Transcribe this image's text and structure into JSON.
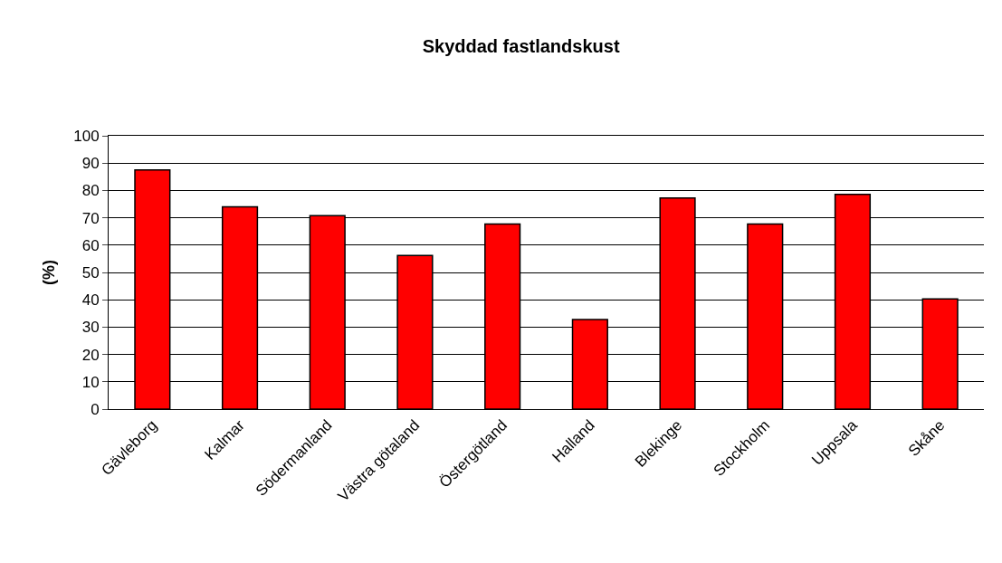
{
  "chart_data": {
    "type": "bar",
    "title": "Skyddad fastlandskust",
    "ylabel": "(%)",
    "categories": [
      "Gävleborg",
      "Kalmar",
      "Södermanland",
      "Västra götaland",
      "Östergötland",
      "Halland",
      "Blekinge",
      "Stockholm",
      "Uppsala",
      "Skåne"
    ],
    "values": [
      87.5,
      74.0,
      70.8,
      56.2,
      67.7,
      32.8,
      77.2,
      67.7,
      78.6,
      40.3
    ],
    "color": "#ff0000",
    "ylim": [
      0,
      100
    ],
    "yticks": [
      0,
      10,
      20,
      30,
      40,
      50,
      60,
      70,
      80,
      90,
      100
    ],
    "grid": "y"
  }
}
